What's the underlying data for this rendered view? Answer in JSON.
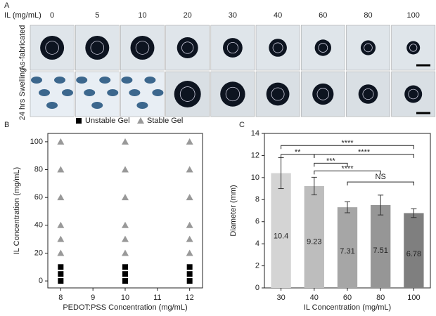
{
  "panel_a": {
    "label": "A",
    "axis_label": "IL (mg/mL)",
    "columns": [
      "0",
      "5",
      "10",
      "20",
      "30",
      "40",
      "60",
      "80",
      "100"
    ],
    "rows": [
      "As-fabricated",
      "24 hrs Swelling"
    ]
  },
  "chart_data": [
    {
      "type": "scatter",
      "panel": "B",
      "xlabel": "PEDOT:PSS Concentration (mg/mL)",
      "ylabel": "IL Concentration (mg/mL)",
      "xlim": [
        7.6,
        12.4
      ],
      "xticks": [
        8,
        9,
        10,
        11,
        12
      ],
      "ylim": [
        -5,
        106
      ],
      "yticks": [
        0,
        20,
        40,
        60,
        80,
        100
      ],
      "legend": "top",
      "series": [
        {
          "name": "Unstable Gel",
          "color": "#000000",
          "marker": "square",
          "x": [
            8,
            8,
            8,
            10,
            10,
            10,
            12,
            12,
            12
          ],
          "y": [
            0,
            5,
            10,
            0,
            5,
            10,
            0,
            5,
            10
          ]
        },
        {
          "name": "Stable Gel",
          "color": "#999999",
          "marker": "triangle",
          "x": [
            8,
            8,
            8,
            8,
            8,
            8,
            10,
            10,
            10,
            10,
            10,
            10,
            12,
            12,
            12,
            12,
            12,
            12
          ],
          "y": [
            20,
            30,
            40,
            60,
            80,
            100,
            20,
            30,
            40,
            60,
            80,
            100,
            20,
            30,
            40,
            60,
            80,
            100
          ]
        }
      ]
    },
    {
      "type": "bar",
      "panel": "C",
      "xlabel": "IL Concentration (mg/mL)",
      "ylabel": "Diameter (mm)",
      "categories": [
        "30",
        "40",
        "60",
        "80",
        "100"
      ],
      "values": [
        10.4,
        9.23,
        7.31,
        7.51,
        6.78
      ],
      "errors": [
        1.4,
        0.8,
        0.5,
        0.9,
        0.4
      ],
      "colors": [
        "#d4d4d4",
        "#bdbdbd",
        "#a6a6a6",
        "#969696",
        "#7f7f7f"
      ],
      "ylim": [
        0,
        14
      ],
      "yticks": [
        0,
        2,
        4,
        6,
        8,
        10,
        12,
        14
      ],
      "brackets": [
        {
          "from": "30",
          "to": "100",
          "label": "****"
        },
        {
          "from": "30",
          "to": "40",
          "label": "**"
        },
        {
          "from": "40",
          "to": "100",
          "label": "****"
        },
        {
          "from": "40",
          "to": "60",
          "label": "***"
        },
        {
          "from": "40",
          "to": "80",
          "label": "****"
        },
        {
          "from": "60",
          "to": "100",
          "label": "NS"
        }
      ]
    }
  ]
}
